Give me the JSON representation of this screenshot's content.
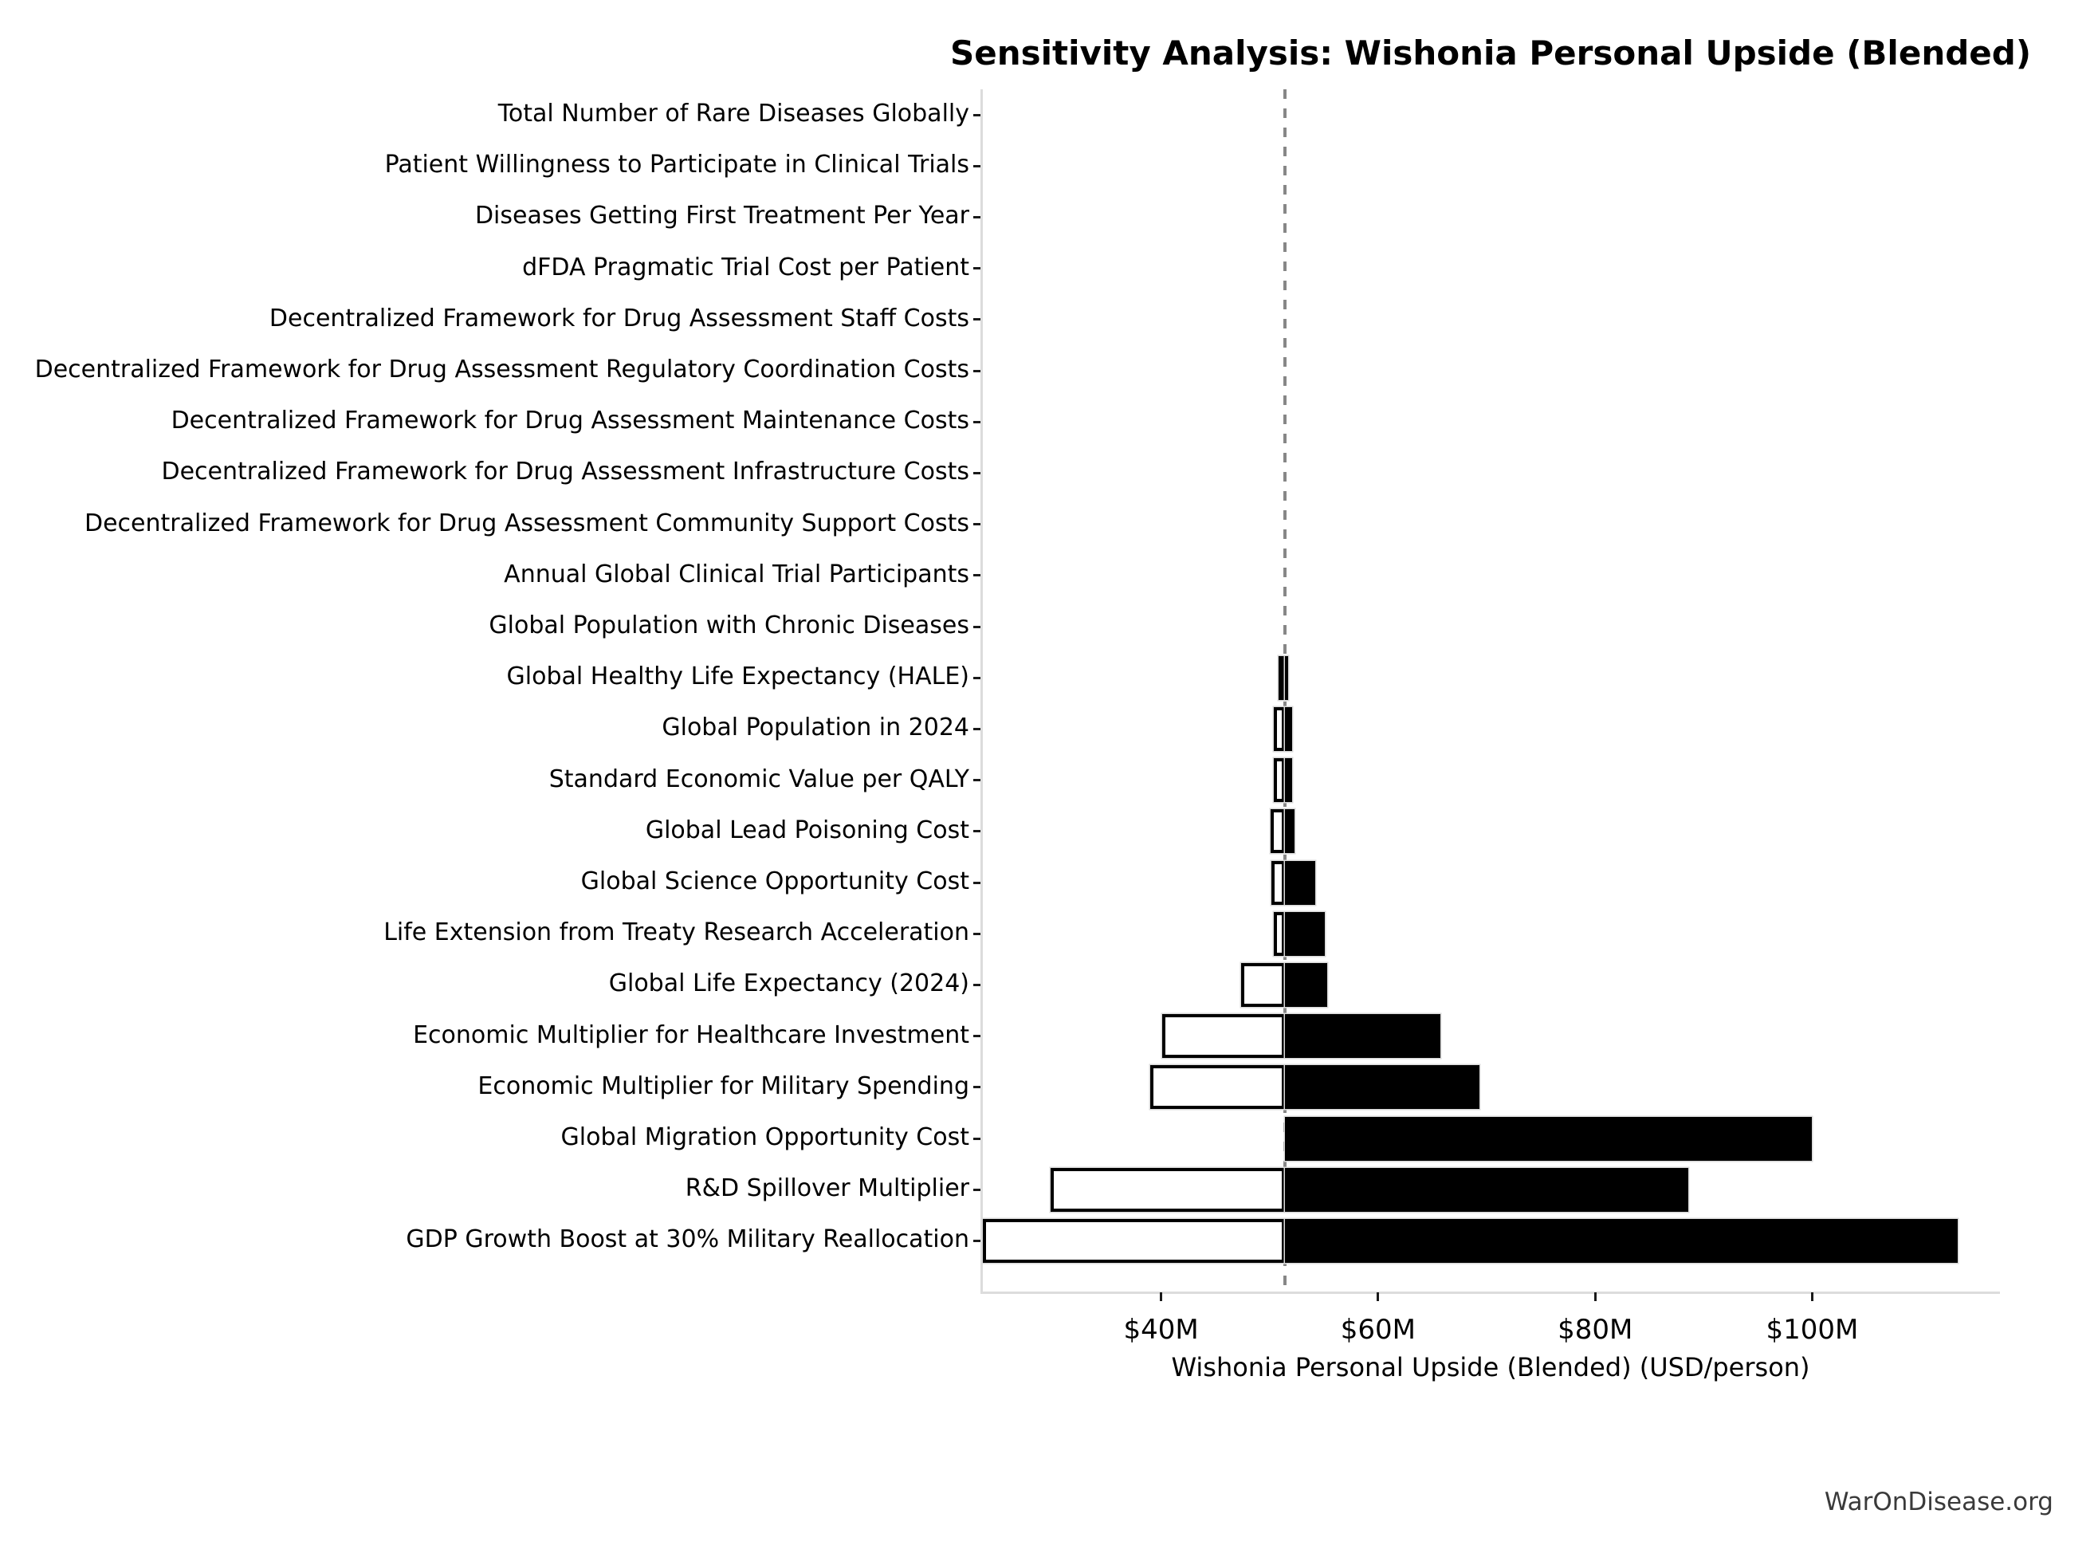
{
  "title": "Sensitivity Analysis: Wishonia Personal Upside (Blended)",
  "watermark": "WarOnDisease.org",
  "chart_data": {
    "type": "bar",
    "subtype": "tornado-sensitivity-horizontal",
    "title": "Sensitivity Analysis: Wishonia Personal Upside (Blended)",
    "xlabel": "Wishonia Personal Upside (Blended) (USD/person)",
    "value_unit": "USD millions per person",
    "baseline": 51.4,
    "xlim": [
      23.5,
      117.3
    ],
    "grid": false,
    "legend": "none",
    "x_ticks": [
      {
        "value": 40,
        "label": "$40M"
      },
      {
        "value": 60,
        "label": "$60M"
      },
      {
        "value": 80,
        "label": "$80M"
      },
      {
        "value": 100,
        "label": "$100M"
      }
    ],
    "rows": [
      {
        "label": "Total Number of Rare Diseases Globally",
        "low": 51.4,
        "high": 51.4
      },
      {
        "label": "Patient Willingness to Participate in Clinical Trials",
        "low": 51.4,
        "high": 51.4
      },
      {
        "label": "Diseases Getting First Treatment Per Year",
        "low": 51.4,
        "high": 51.4
      },
      {
        "label": "dFDA Pragmatic Trial Cost per Patient",
        "low": 51.4,
        "high": 51.4
      },
      {
        "label": "Decentralized Framework for Drug Assessment Staff Costs",
        "low": 51.4,
        "high": 51.4
      },
      {
        "label": "Decentralized Framework for Drug Assessment Regulatory Coordination Costs",
        "low": 51.4,
        "high": 51.4
      },
      {
        "label": "Decentralized Framework for Drug Assessment Maintenance Costs",
        "low": 51.4,
        "high": 51.4
      },
      {
        "label": "Decentralized Framework for Drug Assessment Infrastructure Costs",
        "low": 51.4,
        "high": 51.4
      },
      {
        "label": "Decentralized Framework for Drug Assessment Community Support Costs",
        "low": 51.4,
        "high": 51.4
      },
      {
        "label": "Annual Global Clinical Trial Participants",
        "low": 51.4,
        "high": 51.4
      },
      {
        "label": "Global Population with Chronic Diseases",
        "low": 51.4,
        "high": 51.4
      },
      {
        "label": "Global Healthy Life Expectancy (HALE)",
        "low": 50.8,
        "high": 51.7
      },
      {
        "label": "Global Population in 2024",
        "low": 50.4,
        "high": 52.1
      },
      {
        "label": "Standard Economic Value per QALY",
        "low": 50.4,
        "high": 52.1
      },
      {
        "label": "Global Lead Poisoning Cost",
        "low": 50.1,
        "high": 52.3
      },
      {
        "label": "Global Science Opportunity Cost",
        "low": 50.2,
        "high": 54.2
      },
      {
        "label": "Life Extension from Treaty Research Acceleration",
        "low": 50.4,
        "high": 55.1
      },
      {
        "label": "Global Life Expectancy (2024)",
        "low": 47.4,
        "high": 55.3
      },
      {
        "label": "Economic Multiplier for Healthcare Investment",
        "low": 40.1,
        "high": 65.7
      },
      {
        "label": "Economic Multiplier for Military Spending",
        "low": 39.0,
        "high": 69.3
      },
      {
        "label": "Global Migration Opportunity Cost",
        "low": 51.4,
        "high": 100.0
      },
      {
        "label": "R&D Spillover Multiplier",
        "low": 29.8,
        "high": 88.6
      },
      {
        "label": "GDP Growth Boost at 30% Military Reallocation",
        "low": 23.6,
        "high": 113.4
      }
    ],
    "colors": {
      "bar_high_fill": "#000000",
      "bar_low_fill": "#ffffff",
      "bar_edge": "#000000",
      "bar_outer_edge": "#d9d9d9",
      "baseline_line": "#878787",
      "spine": "#dcdcdc",
      "text": "#000000",
      "watermark": "#3a3a3a"
    }
  }
}
